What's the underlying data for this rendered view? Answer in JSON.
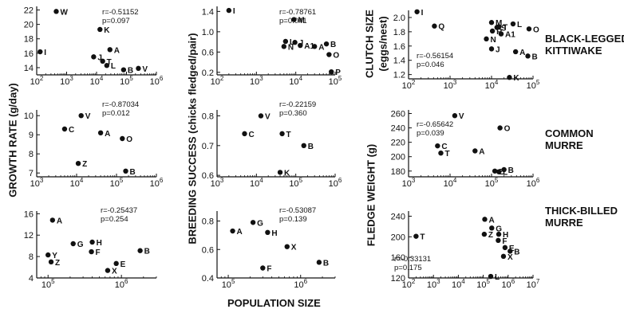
{
  "figure": {
    "xlabel": "POPULATION SIZE",
    "ylabel_growth": "GROWTH RATE (g/day)",
    "ylabel_breeding": "BREEDING SUCCESS (chicks fledged/pair)",
    "ylabel_clutch": "CLUTCH SIZE",
    "ylabel_clutch_sub": "(eggs/nest)",
    "ylabel_fledge": "FLEDGE WEIGHT (g)",
    "species": [
      {
        "line1": "BLACK-LEGGED",
        "line2": "KITTIWAKE"
      },
      {
        "line1": "COMMON",
        "line2": "MURRE"
      },
      {
        "line1": "THICK-BILLED",
        "line2": "MURRE"
      }
    ]
  },
  "chart_data": [
    {
      "type": "scatter",
      "id": "kittiwake_growth",
      "xscale": "log",
      "xlim": [
        100,
        1000000
      ],
      "ylim": [
        13,
        22.5
      ],
      "xticks": [
        100,
        1000,
        10000,
        100000,
        1000000
      ],
      "xticklabels": [
        "10^2",
        "10^3",
        "10^4",
        "10^5",
        "10^6"
      ],
      "yticks": [
        14,
        16,
        18,
        20,
        22
      ],
      "yticklabels": [
        "14",
        "16",
        "18",
        "20",
        "22"
      ],
      "stat_r": "r=-0.51152",
      "stat_p": "p=0.097",
      "points": [
        {
          "label": "I",
          "x": 130,
          "y": 16.2
        },
        {
          "label": "W",
          "x": 450,
          "y": 21.8
        },
        {
          "label": "K",
          "x": 13000,
          "y": 19.3
        },
        {
          "label": "J",
          "x": 8000,
          "y": 15.5
        },
        {
          "label": "T",
          "x": 16000,
          "y": 14.9
        },
        {
          "label": "A",
          "x": 28000,
          "y": 16.5
        },
        {
          "label": "L",
          "x": 22000,
          "y": 14.3
        },
        {
          "label": "B",
          "x": 80000,
          "y": 13.7
        },
        {
          "label": "V",
          "x": 250000,
          "y": 13.9
        }
      ]
    },
    {
      "type": "scatter",
      "id": "kittiwake_breeding",
      "xscale": "log",
      "xlim": [
        100,
        100000
      ],
      "ylim": [
        0.15,
        1.5
      ],
      "xticks": [
        100,
        1000,
        10000,
        100000
      ],
      "xticklabels": [
        "10^2",
        "10^3",
        "10^4",
        "10^5"
      ],
      "yticks": [
        0.2,
        0.6,
        1.0,
        1.4
      ],
      "yticklabels": [
        "0.2",
        "0.6",
        "1.0",
        "1.4"
      ],
      "stat_r": "r=-0.78761",
      "stat_p": "p=0.041",
      "points": [
        {
          "label": "I",
          "x": 200,
          "y": 1.42
        },
        {
          "label": "M",
          "x": 9000,
          "y": 1.24
        },
        {
          "label": "J",
          "x": 9500,
          "y": 0.79
        },
        {
          "label": "L",
          "x": 5500,
          "y": 0.81
        },
        {
          "label": "N",
          "x": 5000,
          "y": 0.71
        },
        {
          "label": "A1",
          "x": 13000,
          "y": 0.73
        },
        {
          "label": "A",
          "x": 30000,
          "y": 0.71
        },
        {
          "label": "B",
          "x": 60000,
          "y": 0.76
        },
        {
          "label": "O",
          "x": 70000,
          "y": 0.55
        },
        {
          "label": "P",
          "x": 80000,
          "y": 0.21
        }
      ]
    },
    {
      "type": "scatter",
      "id": "kittiwake_clutch",
      "xscale": "log",
      "xlim": [
        100,
        100000
      ],
      "ylim": [
        1.14,
        2.1
      ],
      "xticks": [
        100,
        1000,
        10000,
        100000
      ],
      "xticklabels": [
        "10^2",
        "10^3",
        "10^4",
        "10^5"
      ],
      "yticks": [
        1.2,
        1.4,
        1.6,
        1.8,
        2.0
      ],
      "yticklabels": [
        "1.2",
        "1.4",
        "1.6",
        "1.8",
        "2.0"
      ],
      "stat_r": "r=-0.56154",
      "stat_p": "p=0.046",
      "points": [
        {
          "label": "I",
          "x": 160,
          "y": 2.08
        },
        {
          "label": "Q",
          "x": 420,
          "y": 1.88
        },
        {
          "label": "M",
          "x": 10000,
          "y": 1.93
        },
        {
          "label": "S",
          "x": 13500,
          "y": 1.86
        },
        {
          "label": "L",
          "x": 33000,
          "y": 1.91
        },
        {
          "label": "R",
          "x": 10500,
          "y": 1.81
        },
        {
          "label": "T",
          "x": 15000,
          "y": 1.87
        },
        {
          "label": "O",
          "x": 80000,
          "y": 1.84
        },
        {
          "label": "A1",
          "x": 17000,
          "y": 1.77
        },
        {
          "label": "N",
          "x": 7500,
          "y": 1.7
        },
        {
          "label": "J",
          "x": 10000,
          "y": 1.56
        },
        {
          "label": "A",
          "x": 38000,
          "y": 1.52
        },
        {
          "label": "B",
          "x": 75000,
          "y": 1.46
        },
        {
          "label": "K",
          "x": 27000,
          "y": 1.16
        }
      ]
    },
    {
      "type": "scatter",
      "id": "common_growth",
      "xscale": "log",
      "xlim": [
        1000,
        1000000
      ],
      "ylim": [
        6.8,
        10.3
      ],
      "xticks": [
        1000,
        10000,
        100000,
        1000000
      ],
      "xticklabels": [
        "10^3",
        "10^4",
        "10^5",
        "10^6"
      ],
      "yticks": [
        7,
        8,
        9,
        10
      ],
      "yticklabels": [
        "7",
        "8",
        "9",
        "10"
      ],
      "stat_r": "r=-0.87034",
      "stat_p": "p=0.012",
      "points": [
        {
          "label": "V",
          "x": 13000,
          "y": 10.0
        },
        {
          "label": "C",
          "x": 5000,
          "y": 9.3
        },
        {
          "label": "A",
          "x": 40000,
          "y": 9.1
        },
        {
          "label": "O",
          "x": 140000,
          "y": 8.8
        },
        {
          "label": "Z",
          "x": 11000,
          "y": 7.5
        },
        {
          "label": "B",
          "x": 170000,
          "y": 7.1
        }
      ]
    },
    {
      "type": "scatter",
      "id": "common_breeding",
      "xscale": "log",
      "xlim": [
        1000,
        1000000
      ],
      "ylim": [
        0.595,
        0.82
      ],
      "xticks": [
        1000,
        10000,
        100000,
        1000000
      ],
      "xticklabels": [
        "10^3",
        "10^4",
        "10^5",
        "10^6"
      ],
      "yticks": [
        0.6,
        0.7,
        0.8
      ],
      "yticklabels": [
        "0.6",
        "0.7",
        "0.8"
      ],
      "stat_r": "r=-0.22159",
      "stat_p": "p=0.360",
      "points": [
        {
          "label": "V",
          "x": 13000,
          "y": 0.8
        },
        {
          "label": "C",
          "x": 5000,
          "y": 0.74
        },
        {
          "label": "T",
          "x": 45000,
          "y": 0.74
        },
        {
          "label": "B",
          "x": 160000,
          "y": 0.7
        },
        {
          "label": "K",
          "x": 40000,
          "y": 0.61
        }
      ]
    },
    {
      "type": "scatter",
      "id": "common_fledge",
      "xscale": "log",
      "xlim": [
        1000,
        1000000
      ],
      "ylim": [
        172,
        265
      ],
      "xticks": [
        1000,
        10000,
        100000,
        1000000
      ],
      "xticklabels": [
        "10^3",
        "10^4",
        "10^5",
        "10^6"
      ],
      "yticks": [
        180,
        200,
        220,
        240,
        260
      ],
      "yticklabels": [
        "180",
        "200",
        "220",
        "240",
        "260"
      ],
      "stat_r": "r=-0.65642",
      "stat_p": "p=0.039",
      "points": [
        {
          "label": "V",
          "x": 13000,
          "y": 257
        },
        {
          "label": "O",
          "x": 160000,
          "y": 240
        },
        {
          "label": "C",
          "x": 5000,
          "y": 215
        },
        {
          "label": "T",
          "x": 6000,
          "y": 205
        },
        {
          "label": "A",
          "x": 40000,
          "y": 208
        },
        {
          "label": "Z",
          "x": 120000,
          "y": 180
        },
        {
          "label": "L",
          "x": 150000,
          "y": 179
        },
        {
          "label": "B",
          "x": 200000,
          "y": 182
        }
      ]
    },
    {
      "type": "scatter",
      "id": "thickbilled_growth",
      "xscale": "log",
      "xlim": [
        70000,
        3000000
      ],
      "ylim": [
        4,
        16.5
      ],
      "xticks": [
        100000,
        1000000
      ],
      "xticklabels": [
        "10^5",
        "10^6"
      ],
      "yticks": [
        4,
        8,
        12,
        16
      ],
      "yticklabels": [
        "4",
        "8",
        "12",
        "16"
      ],
      "stat_r": "r=-0.25437",
      "stat_p": "p=0.254",
      "points": [
        {
          "label": "A",
          "x": 115000,
          "y": 14.8
        },
        {
          "label": "G",
          "x": 220000,
          "y": 10.4
        },
        {
          "label": "H",
          "x": 400000,
          "y": 10.7
        },
        {
          "label": "F",
          "x": 390000,
          "y": 8.9
        },
        {
          "label": "B",
          "x": 1800000,
          "y": 9.1
        },
        {
          "label": "Y",
          "x": 100000,
          "y": 8.3
        },
        {
          "label": "Z",
          "x": 110000,
          "y": 7.0
        },
        {
          "label": "E",
          "x": 850000,
          "y": 6.7
        },
        {
          "label": "X",
          "x": 650000,
          "y": 5.4
        }
      ]
    },
    {
      "type": "scatter",
      "id": "thickbilled_breeding",
      "xscale": "log",
      "xlim": [
        70000,
        3000000
      ],
      "ylim": [
        0.4,
        0.87
      ],
      "xticks": [
        100000,
        1000000
      ],
      "xticklabels": [
        "10^5",
        "10^6"
      ],
      "yticks": [
        0.4,
        0.6,
        0.8
      ],
      "yticklabels": [
        "0.4",
        "0.6",
        "0.8"
      ],
      "stat_r": "r=-0.53087",
      "stat_p": "p=0.139",
      "points": [
        {
          "label": "G",
          "x": 220000,
          "y": 0.79
        },
        {
          "label": "A",
          "x": 115000,
          "y": 0.73
        },
        {
          "label": "H",
          "x": 350000,
          "y": 0.72
        },
        {
          "label": "X",
          "x": 650000,
          "y": 0.62
        },
        {
          "label": "B",
          "x": 1800000,
          "y": 0.51
        },
        {
          "label": "F",
          "x": 300000,
          "y": 0.47
        }
      ]
    },
    {
      "type": "scatter",
      "id": "thickbilled_fledge",
      "xscale": "log",
      "xlim": [
        100,
        10000000
      ],
      "ylim": [
        120,
        250
      ],
      "xticks": [
        100,
        1000,
        10000,
        100000,
        1000000,
        10000000
      ],
      "xticklabels": [
        "10^2",
        "10^3",
        "10^4",
        "10^5",
        "10^6",
        "10^7"
      ],
      "yticks": [
        120,
        160,
        200,
        240
      ],
      "yticklabels": [
        "120",
        "160",
        "200",
        "240"
      ],
      "stat_r": "r=-0.33131",
      "stat_p": "p=0.175",
      "points": [
        {
          "label": "A",
          "x": 115000,
          "y": 234
        },
        {
          "label": "G",
          "x": 220000,
          "y": 217
        },
        {
          "label": "Z",
          "x": 110000,
          "y": 205
        },
        {
          "label": "H",
          "x": 420000,
          "y": 205
        },
        {
          "label": "T",
          "x": 200,
          "y": 201
        },
        {
          "label": "F",
          "x": 400000,
          "y": 193
        },
        {
          "label": "E",
          "x": 750000,
          "y": 179
        },
        {
          "label": "B",
          "x": 1200000,
          "y": 172
        },
        {
          "label": "X",
          "x": 650000,
          "y": 162
        },
        {
          "label": "L",
          "x": 200000,
          "y": 123
        }
      ]
    }
  ]
}
